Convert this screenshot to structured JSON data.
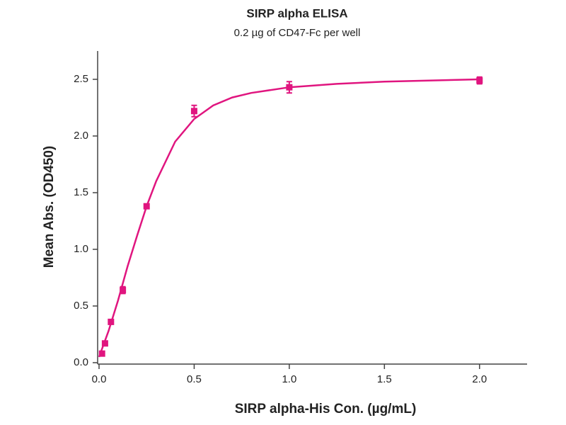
{
  "chart_data": {
    "type": "scatter",
    "title": "SIRP alpha ELISA",
    "subtitle": "0.2 µg of CD47-Fc per well",
    "x_label": "SIRP alpha-His Con. (µg/mL)",
    "y_label": "Mean Abs. (OD450)",
    "color": "#e0157f",
    "xlim": [
      0,
      2.25
    ],
    "ylim": [
      0,
      2.75
    ],
    "xticks": [
      {
        "value": 0,
        "label": "0.0"
      },
      {
        "value": 0.5,
        "label": "0.5"
      },
      {
        "value": 1,
        "label": "1.0"
      },
      {
        "value": 1.5,
        "label": "1.5"
      },
      {
        "value": 2,
        "label": "2.0"
      }
    ],
    "yticks": [
      {
        "value": 0,
        "label": "0.0"
      },
      {
        "value": 0.5,
        "label": "0.5"
      },
      {
        "value": 1,
        "label": "1.0"
      },
      {
        "value": 1.5,
        "label": "1.5"
      },
      {
        "value": 2,
        "label": "2.0"
      },
      {
        "value": 2.5,
        "label": "2.5"
      }
    ],
    "points": {
      "x": [
        0.0156,
        0.03125,
        0.0625,
        0.125,
        0.25,
        0.5,
        1.0,
        2.0
      ],
      "values": [
        0.08,
        0.17,
        0.36,
        0.64,
        1.38,
        2.22,
        2.43,
        2.49
      ],
      "errors": [
        0.02,
        0.02,
        0.02,
        0.03,
        0.02,
        0.05,
        0.05,
        0.03
      ]
    },
    "fit": {
      "x": [
        0,
        0.05,
        0.1,
        0.15,
        0.2,
        0.25,
        0.3,
        0.4,
        0.5,
        0.6,
        0.7,
        0.8,
        1.0,
        1.25,
        1.5,
        2.0
      ],
      "values": [
        0.05,
        0.28,
        0.55,
        0.85,
        1.12,
        1.38,
        1.6,
        1.95,
        2.15,
        2.27,
        2.34,
        2.38,
        2.43,
        2.46,
        2.48,
        2.5
      ]
    }
  }
}
